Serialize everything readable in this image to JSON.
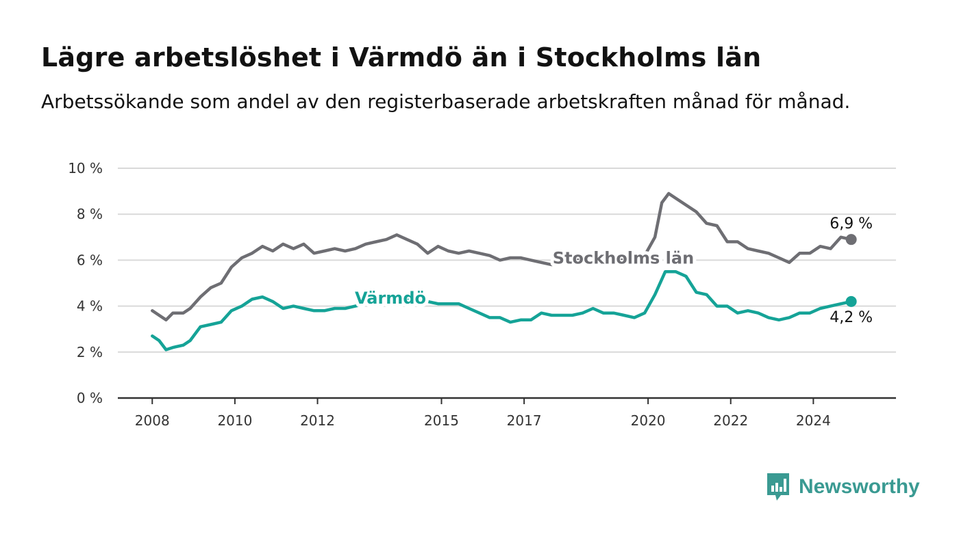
{
  "header": {
    "title": "Lägre arbetslöshet i Värmdö än i Stockholms län",
    "subtitle": "Arbetssökande som andel av den registerbaserade arbetskraften månad för månad."
  },
  "brand": {
    "name": "Newsworthy",
    "icon": "newsworthy-logo-icon",
    "color": "#3a9a92"
  },
  "chart_data": {
    "type": "line",
    "title": "Lägre arbetslöshet i Värmdö än i Stockholms län",
    "subtitle": "Arbetssökande som andel av den registerbaserade arbetskraften månad för månad.",
    "xlabel": "",
    "ylabel": "",
    "x_ticks": [
      "2008",
      "2010",
      "2012",
      "2015",
      "2017",
      "2020",
      "2022",
      "2024"
    ],
    "y_ticks": [
      "0 %",
      "2 %",
      "4 %",
      "6 %",
      "8 %",
      "10 %"
    ],
    "ylim": [
      0,
      10
    ],
    "xlim": [
      "2007-03",
      "2026-01"
    ],
    "grid": true,
    "legend": "inline labels",
    "series": [
      {
        "name": "Stockholms län",
        "color": "#6e6e73",
        "end_label": "6,9 %",
        "points": [
          [
            "2008-01",
            3.8
          ],
          [
            "2008-03",
            3.6
          ],
          [
            "2008-05",
            3.4
          ],
          [
            "2008-07",
            3.7
          ],
          [
            "2008-10",
            3.7
          ],
          [
            "2008-12",
            3.9
          ],
          [
            "2009-03",
            4.4
          ],
          [
            "2009-06",
            4.8
          ],
          [
            "2009-09",
            5.0
          ],
          [
            "2009-12",
            5.7
          ],
          [
            "2010-03",
            6.1
          ],
          [
            "2010-06",
            6.3
          ],
          [
            "2010-09",
            6.6
          ],
          [
            "2010-12",
            6.4
          ],
          [
            "2011-03",
            6.7
          ],
          [
            "2011-06",
            6.5
          ],
          [
            "2011-09",
            6.7
          ],
          [
            "2011-12",
            6.3
          ],
          [
            "2012-03",
            6.4
          ],
          [
            "2012-06",
            6.5
          ],
          [
            "2012-09",
            6.4
          ],
          [
            "2012-12",
            6.5
          ],
          [
            "2013-03",
            6.7
          ],
          [
            "2013-06",
            6.8
          ],
          [
            "2013-09",
            6.9
          ],
          [
            "2013-12",
            7.1
          ],
          [
            "2014-03",
            6.9
          ],
          [
            "2014-06",
            6.7
          ],
          [
            "2014-09",
            6.3
          ],
          [
            "2014-12",
            6.6
          ],
          [
            "2015-03",
            6.4
          ],
          [
            "2015-06",
            6.3
          ],
          [
            "2015-09",
            6.4
          ],
          [
            "2015-12",
            6.3
          ],
          [
            "2016-03",
            6.2
          ],
          [
            "2016-06",
            6.0
          ],
          [
            "2016-09",
            6.1
          ],
          [
            "2016-12",
            6.1
          ],
          [
            "2017-03",
            6.0
          ],
          [
            "2017-06",
            5.9
          ],
          [
            "2017-09",
            5.8
          ],
          [
            "2017-12",
            5.9
          ],
          [
            "2018-03",
            6.0
          ],
          [
            "2018-06",
            6.0
          ],
          [
            "2018-09",
            6.0
          ],
          [
            "2018-12",
            6.0
          ],
          [
            "2019-03",
            6.0
          ],
          [
            "2019-06",
            6.0
          ],
          [
            "2019-09",
            6.1
          ],
          [
            "2019-12",
            6.2
          ],
          [
            "2020-03",
            7.0
          ],
          [
            "2020-05",
            8.5
          ],
          [
            "2020-07",
            8.9
          ],
          [
            "2020-09",
            8.7
          ],
          [
            "2020-12",
            8.4
          ],
          [
            "2021-03",
            8.1
          ],
          [
            "2021-06",
            7.6
          ],
          [
            "2021-09",
            7.5
          ],
          [
            "2021-12",
            6.8
          ],
          [
            "2022-03",
            6.8
          ],
          [
            "2022-06",
            6.5
          ],
          [
            "2022-09",
            6.4
          ],
          [
            "2022-12",
            6.3
          ],
          [
            "2023-03",
            6.1
          ],
          [
            "2023-06",
            5.9
          ],
          [
            "2023-09",
            6.3
          ],
          [
            "2023-12",
            6.3
          ],
          [
            "2024-03",
            6.6
          ],
          [
            "2024-06",
            6.5
          ],
          [
            "2024-09",
            7.0
          ],
          [
            "2024-12",
            6.9
          ]
        ]
      },
      {
        "name": "Värmdö",
        "color": "#15a397",
        "end_label": "4,2 %",
        "points": [
          [
            "2008-01",
            2.7
          ],
          [
            "2008-03",
            2.5
          ],
          [
            "2008-05",
            2.1
          ],
          [
            "2008-07",
            2.2
          ],
          [
            "2008-10",
            2.3
          ],
          [
            "2008-12",
            2.5
          ],
          [
            "2009-03",
            3.1
          ],
          [
            "2009-06",
            3.2
          ],
          [
            "2009-09",
            3.3
          ],
          [
            "2009-12",
            3.8
          ],
          [
            "2010-03",
            4.0
          ],
          [
            "2010-06",
            4.3
          ],
          [
            "2010-09",
            4.4
          ],
          [
            "2010-12",
            4.2
          ],
          [
            "2011-03",
            3.9
          ],
          [
            "2011-06",
            4.0
          ],
          [
            "2011-09",
            3.9
          ],
          [
            "2011-12",
            3.8
          ],
          [
            "2012-03",
            3.8
          ],
          [
            "2012-06",
            3.9
          ],
          [
            "2012-09",
            3.9
          ],
          [
            "2012-12",
            4.0
          ],
          [
            "2013-03",
            4.1
          ],
          [
            "2013-06",
            4.2
          ],
          [
            "2013-09",
            4.3
          ],
          [
            "2013-12",
            4.4
          ],
          [
            "2014-03",
            4.3
          ],
          [
            "2014-06",
            4.2
          ],
          [
            "2014-09",
            4.2
          ],
          [
            "2014-12",
            4.1
          ],
          [
            "2015-03",
            4.1
          ],
          [
            "2015-06",
            4.1
          ],
          [
            "2015-09",
            3.9
          ],
          [
            "2015-12",
            3.7
          ],
          [
            "2016-03",
            3.5
          ],
          [
            "2016-06",
            3.5
          ],
          [
            "2016-09",
            3.3
          ],
          [
            "2016-12",
            3.4
          ],
          [
            "2017-03",
            3.4
          ],
          [
            "2017-06",
            3.7
          ],
          [
            "2017-09",
            3.6
          ],
          [
            "2017-12",
            3.6
          ],
          [
            "2018-03",
            3.6
          ],
          [
            "2018-06",
            3.7
          ],
          [
            "2018-09",
            3.9
          ],
          [
            "2018-12",
            3.7
          ],
          [
            "2019-03",
            3.7
          ],
          [
            "2019-06",
            3.6
          ],
          [
            "2019-09",
            3.5
          ],
          [
            "2019-12",
            3.7
          ],
          [
            "2020-03",
            4.5
          ],
          [
            "2020-06",
            5.5
          ],
          [
            "2020-09",
            5.5
          ],
          [
            "2020-12",
            5.3
          ],
          [
            "2021-03",
            4.6
          ],
          [
            "2021-06",
            4.5
          ],
          [
            "2021-09",
            4.0
          ],
          [
            "2021-12",
            4.0
          ],
          [
            "2022-03",
            3.7
          ],
          [
            "2022-06",
            3.8
          ],
          [
            "2022-09",
            3.7
          ],
          [
            "2022-12",
            3.5
          ],
          [
            "2023-03",
            3.4
          ],
          [
            "2023-06",
            3.5
          ],
          [
            "2023-09",
            3.7
          ],
          [
            "2023-12",
            3.7
          ],
          [
            "2024-03",
            3.9
          ],
          [
            "2024-06",
            4.0
          ],
          [
            "2024-09",
            4.1
          ],
          [
            "2024-12",
            4.2
          ]
        ]
      }
    ],
    "colors": {
      "grid": "#d9d9d9",
      "axis": "#333333"
    }
  }
}
